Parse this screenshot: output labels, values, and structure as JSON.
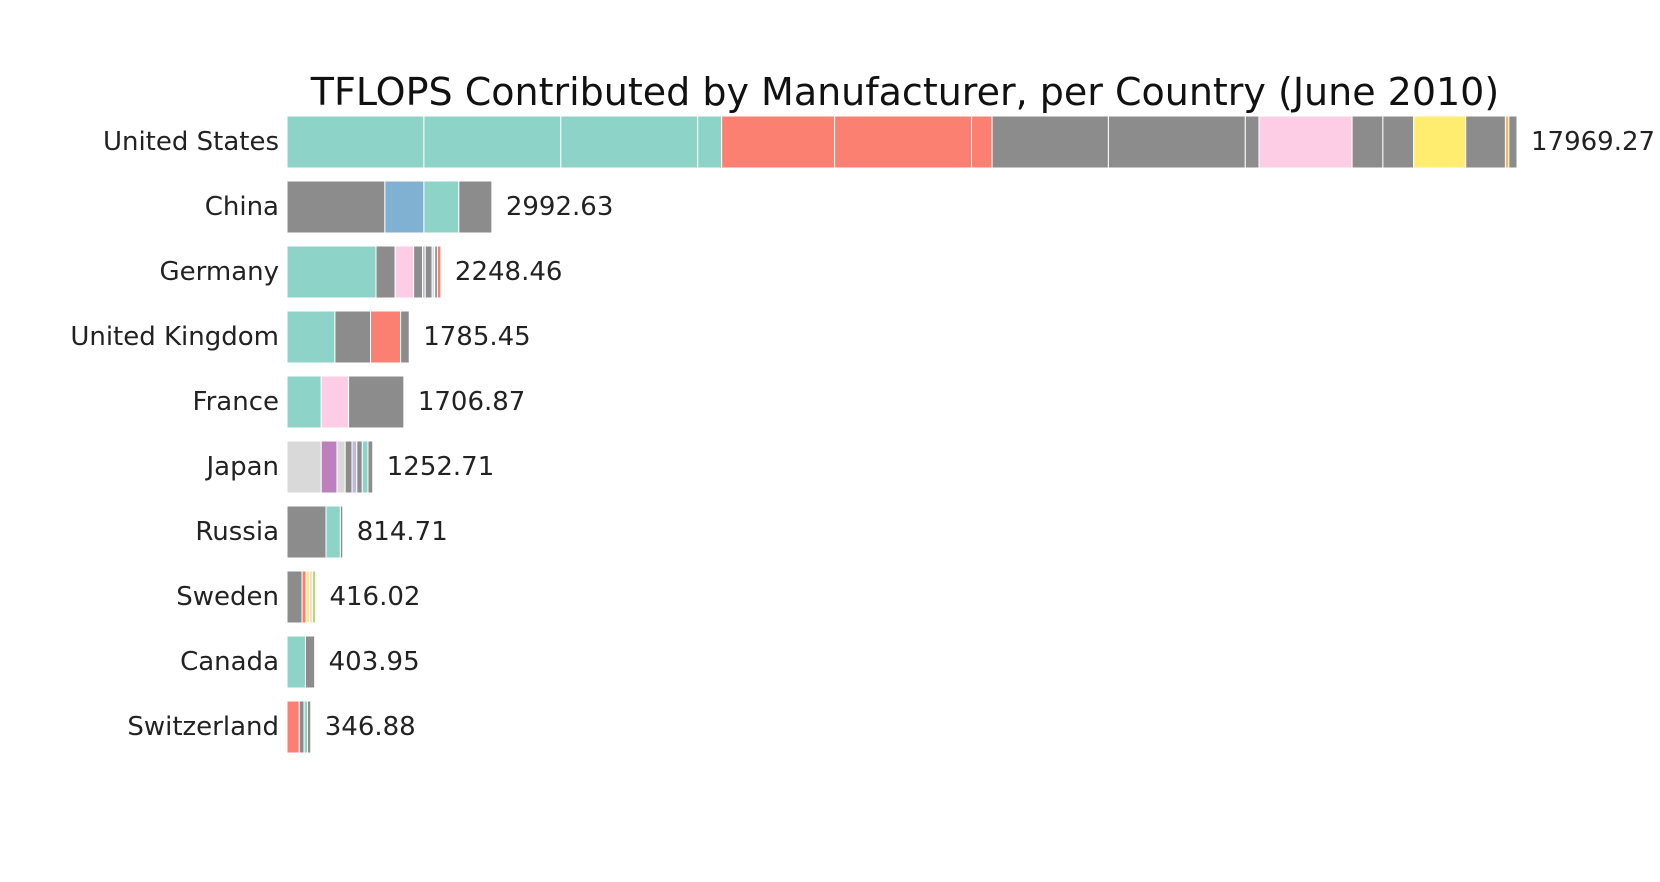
{
  "colors": {
    "teal": "#8dd3c7",
    "salmon": "#fb8072",
    "gray": "#8c8c8c",
    "pink": "#fccde5",
    "yellow": "#ffed6f",
    "blue": "#80b1d3",
    "lightgray": "#d9d9d9",
    "purple": "#bc80bd",
    "orange": "#fdb462",
    "green": "#b3de69",
    "lavender": "#bebada"
  },
  "chart_data": {
    "type": "bar",
    "orientation": "horizontal",
    "stacked": true,
    "title": "TFLOPS Contributed by Manufacturer, per Country (June 2010)",
    "xlim": [
      0,
      17969.27
    ],
    "grid": false,
    "legend": "none",
    "categories": [
      "United States",
      "China",
      "Germany",
      "United Kingdom",
      "France",
      "Japan",
      "Russia",
      "Sweden",
      "Canada",
      "Switzerland"
    ],
    "totals": [
      "17969.27",
      "2992.63",
      "2248.46",
      "1785.45",
      "1706.87",
      "1252.71",
      "814.71",
      "416.02",
      "403.95",
      "346.88"
    ],
    "stacks": [
      [
        {
          "color": "teal",
          "value": 2000
        },
        {
          "color": "teal",
          "value": 2000
        },
        {
          "color": "teal",
          "value": 2000
        },
        {
          "color": "teal",
          "value": 350
        },
        {
          "color": "salmon",
          "value": 1650
        },
        {
          "color": "salmon",
          "value": 2000
        },
        {
          "color": "salmon",
          "value": 300
        },
        {
          "color": "gray",
          "value": 1700
        },
        {
          "color": "gray",
          "value": 2000
        },
        {
          "color": "gray",
          "value": 200
        },
        {
          "color": "pink",
          "value": 1360
        },
        {
          "color": "gray",
          "value": 450
        },
        {
          "color": "gray",
          "value": 450
        },
        {
          "color": "yellow",
          "value": 760
        },
        {
          "color": "gray",
          "value": 580
        },
        {
          "color": "orange",
          "value": 50
        },
        {
          "color": "gray",
          "value": 119.27
        }
      ],
      [
        {
          "color": "gray",
          "value": 1430
        },
        {
          "color": "blue",
          "value": 570
        },
        {
          "color": "teal",
          "value": 510
        },
        {
          "color": "gray",
          "value": 482.63
        }
      ],
      [
        {
          "color": "teal",
          "value": 1300
        },
        {
          "color": "gray",
          "value": 280
        },
        {
          "color": "pink",
          "value": 270
        },
        {
          "color": "gray",
          "value": 130
        },
        {
          "color": "lavender",
          "value": 40
        },
        {
          "color": "gray",
          "value": 100
        },
        {
          "color": "lightgray",
          "value": 38
        },
        {
          "color": "gray",
          "value": 40
        },
        {
          "color": "salmon",
          "value": 50.46
        }
      ],
      [
        {
          "color": "teal",
          "value": 700
        },
        {
          "color": "gray",
          "value": 520
        },
        {
          "color": "salmon",
          "value": 440
        },
        {
          "color": "gray",
          "value": 125.45
        }
      ],
      [
        {
          "color": "teal",
          "value": 500
        },
        {
          "color": "pink",
          "value": 400
        },
        {
          "color": "gray",
          "value": 806.87
        }
      ],
      [
        {
          "color": "lightgray",
          "value": 500
        },
        {
          "color": "purple",
          "value": 230
        },
        {
          "color": "lightgray",
          "value": 120
        },
        {
          "color": "gray",
          "value": 100
        },
        {
          "color": "lavender",
          "value": 70
        },
        {
          "color": "gray",
          "value": 80
        },
        {
          "color": "teal",
          "value": 82.71
        },
        {
          "color": "gray",
          "value": 70
        }
      ],
      [
        {
          "color": "gray",
          "value": 570
        },
        {
          "color": "teal",
          "value": 210
        },
        {
          "color": "gray",
          "value": 34.71
        }
      ],
      [
        {
          "color": "gray",
          "value": 220
        },
        {
          "color": "salmon",
          "value": 60
        },
        {
          "color": "yellow",
          "value": 50
        },
        {
          "color": "pink",
          "value": 40
        },
        {
          "color": "green",
          "value": 46.02
        }
      ],
      [
        {
          "color": "teal",
          "value": 270
        },
        {
          "color": "gray",
          "value": 133.95
        }
      ],
      [
        {
          "color": "salmon",
          "value": 180
        },
        {
          "color": "gray",
          "value": 70
        },
        {
          "color": "teal",
          "value": 50
        },
        {
          "color": "gray",
          "value": 46.88
        }
      ]
    ]
  }
}
